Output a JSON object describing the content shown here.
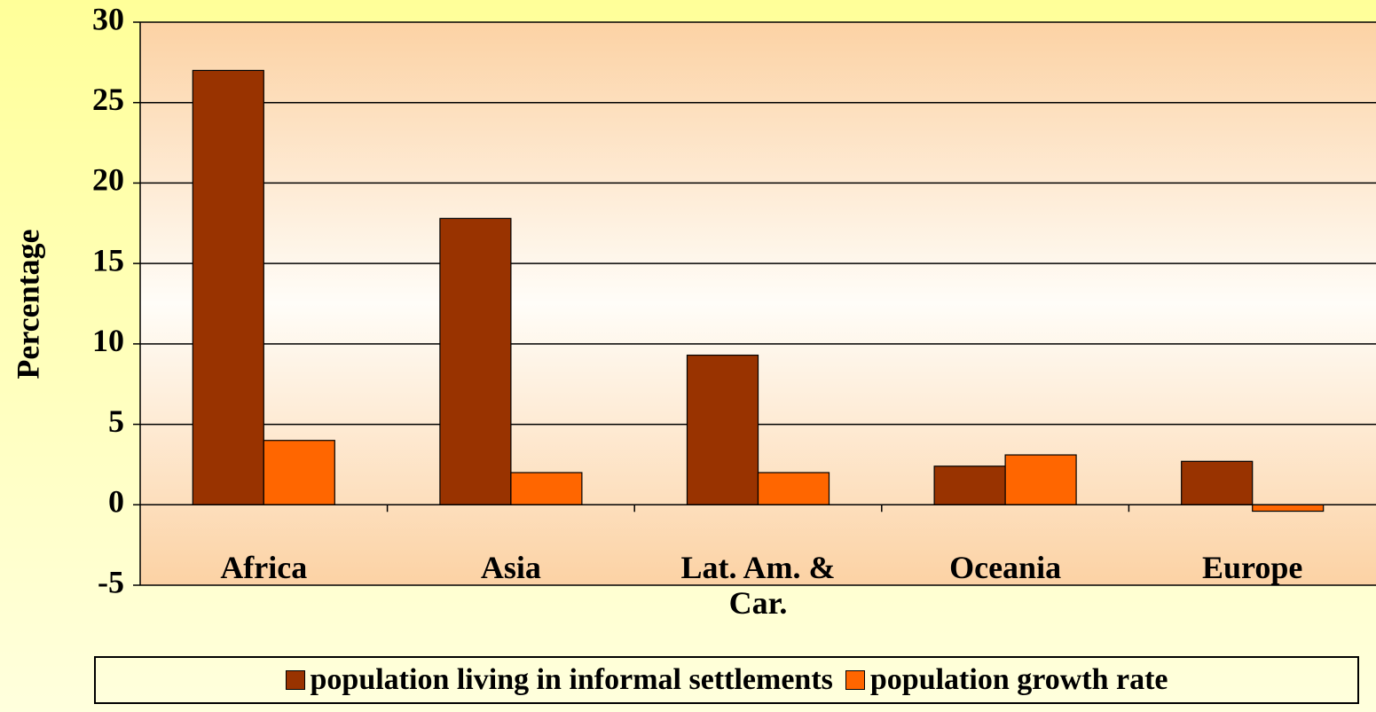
{
  "chart_data": {
    "type": "bar",
    "y_label": "Percentage",
    "categories": [
      "Africa",
      "Asia",
      "Lat. Am. & Car.",
      "Oceania",
      "Europe"
    ],
    "series": [
      {
        "name": "population living in informal settlements",
        "color": "#993300",
        "values": [
          27,
          17.8,
          9.3,
          2.4,
          2.7
        ]
      },
      {
        "name": "population growth rate",
        "color": "#ff6600",
        "values": [
          4,
          2,
          2,
          3.1,
          -0.4
        ]
      }
    ],
    "ylim": [
      -5,
      30
    ],
    "yticks": [
      -5,
      0,
      5,
      10,
      15,
      20,
      25,
      30
    ],
    "grid": true,
    "legend": "bottom"
  }
}
